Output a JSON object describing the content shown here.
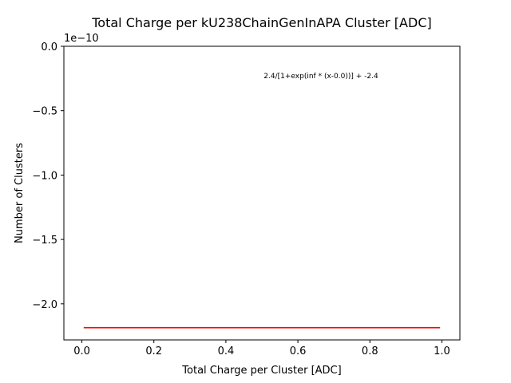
{
  "chart_data": {
    "type": "line",
    "title": "Total Charge per kU238ChainGenInAPA Cluster [ADC]",
    "xlabel": "Total Charge per Cluster [ADC]",
    "ylabel": "Number of Clusters",
    "offset_label": "1e−10",
    "annotation": "2.4/[1+exp(inf * (x-0.0))] + -2.4",
    "xlim": [
      -0.05,
      1.05
    ],
    "ylim": [
      -2.28,
      0.0
    ],
    "x_ticks": [
      0.0,
      0.2,
      0.4,
      0.6,
      0.8,
      1.0
    ],
    "x_tick_labels": [
      "0.0",
      "0.2",
      "0.4",
      "0.6",
      "0.8",
      "1.0"
    ],
    "y_ticks": [
      0.0,
      -0.5,
      -1.0,
      -1.5,
      -2.0
    ],
    "y_tick_labels": [
      "0.0",
      "−0.5",
      "−1.0",
      "−1.5",
      "−2.0"
    ],
    "grid": false,
    "series": [
      {
        "x": [
          0.005,
          0.995
        ],
        "y": [
          -2.185,
          -2.185
        ],
        "color": "#ff0000"
      }
    ]
  }
}
